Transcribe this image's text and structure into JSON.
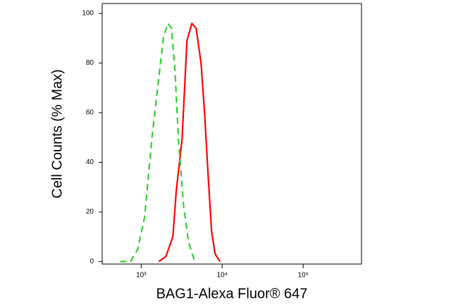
{
  "chart_data": {
    "type": "line",
    "x_label": "BAG1-Alexa Fluor® 647",
    "y_label": "Cell Counts (% Max)",
    "xscale": "log",
    "xlim": [
      330,
      525000
    ],
    "xticks": [
      {
        "value": 1000,
        "label": "10³"
      },
      {
        "value": 10000,
        "label": "10⁴"
      },
      {
        "value": 100000,
        "label": "10⁵"
      }
    ],
    "ylim": [
      -1,
      104
    ],
    "yticks": [
      0,
      20,
      40,
      60,
      80,
      100
    ],
    "series": [
      {
        "color": "#ff0000",
        "dashed": false,
        "x": [
          1650,
          2014,
          2461,
          2722,
          3192,
          3673,
          4227,
          4766,
          5483,
          6065,
          6703,
          7413,
          8185,
          9420
        ],
        "values": [
          0,
          2,
          10,
          29,
          49,
          89,
          96,
          94,
          80,
          60,
          35,
          12,
          3,
          0
        ]
      },
      {
        "color": "#33cc33",
        "dashed": true,
        "x": [
          548,
          741,
          905,
          1105,
          1350,
          1650,
          1896,
          2138,
          2364,
          2614,
          2890,
          3327,
          3830,
          4487,
          4966
        ],
        "values": [
          0,
          0,
          5,
          18,
          49,
          74,
          91,
          96,
          94,
          77,
          49,
          23,
          8,
          1,
          0
        ]
      }
    ]
  }
}
